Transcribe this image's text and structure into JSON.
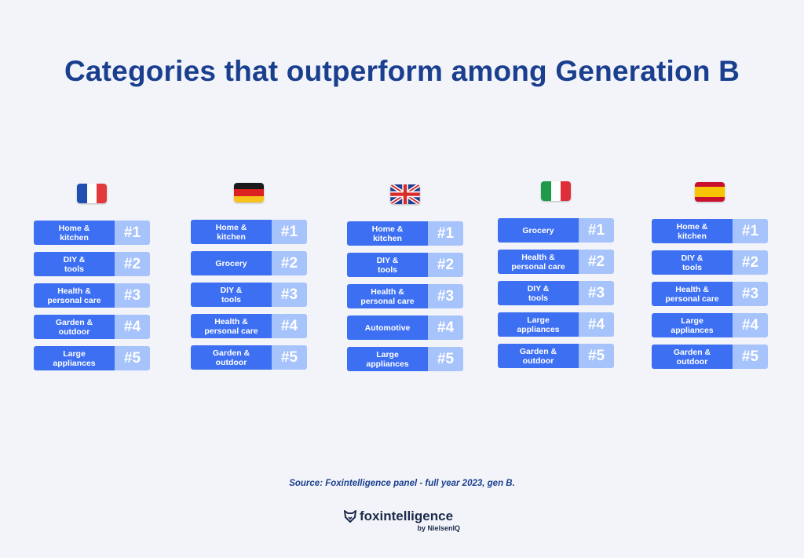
{
  "title": "Categories that outperform among Generation B",
  "source": "Source: Foxintelligence panel - full year 2023, gen B.",
  "logo": {
    "brand": "foxintelligence",
    "by": "by NielsenIQ"
  },
  "colors": {
    "category_bg": "#3d6ff2",
    "rank_bg": "#a6c3fb",
    "title": "#1a3f8f"
  },
  "countries": [
    {
      "flag": "france-flag-icon",
      "rows": [
        {
          "category": "Home &\nkitchen",
          "rank": "#1"
        },
        {
          "category": "DIY &\ntools",
          "rank": "#2"
        },
        {
          "category": "Health &\npersonal care",
          "rank": "#3"
        },
        {
          "category": "Garden &\noutdoor",
          "rank": "#4"
        },
        {
          "category": "Large\nappliances",
          "rank": "#5"
        }
      ]
    },
    {
      "flag": "germany-flag-icon",
      "rows": [
        {
          "category": "Home &\nkitchen",
          "rank": "#1"
        },
        {
          "category": "Grocery",
          "rank": "#2"
        },
        {
          "category": "DIY &\ntools",
          "rank": "#3"
        },
        {
          "category": "Health &\npersonal care",
          "rank": "#4"
        },
        {
          "category": "Garden &\noutdoor",
          "rank": "#5"
        }
      ]
    },
    {
      "flag": "uk-flag-icon",
      "rows": [
        {
          "category": "Home &\nkitchen",
          "rank": "#1"
        },
        {
          "category": "DIY &\ntools",
          "rank": "#2"
        },
        {
          "category": "Health &\npersonal care",
          "rank": "#3"
        },
        {
          "category": "Automotive",
          "rank": "#4"
        },
        {
          "category": "Large\nappliances",
          "rank": "#5"
        }
      ]
    },
    {
      "flag": "italy-flag-icon",
      "rows": [
        {
          "category": "Grocery",
          "rank": "#1"
        },
        {
          "category": "Health &\npersonal care",
          "rank": "#2"
        },
        {
          "category": "DIY &\ntools",
          "rank": "#3"
        },
        {
          "category": "Large\nappliances",
          "rank": "#4"
        },
        {
          "category": "Garden &\noutdoor",
          "rank": "#5"
        }
      ]
    },
    {
      "flag": "spain-flag-icon",
      "rows": [
        {
          "category": "Home &\nkitchen",
          "rank": "#1"
        },
        {
          "category": "DIY &\ntools",
          "rank": "#2"
        },
        {
          "category": "Health &\npersonal care",
          "rank": "#3"
        },
        {
          "category": "Large\nappliances",
          "rank": "#4"
        },
        {
          "category": "Garden &\noutdoor",
          "rank": "#5"
        }
      ]
    }
  ]
}
